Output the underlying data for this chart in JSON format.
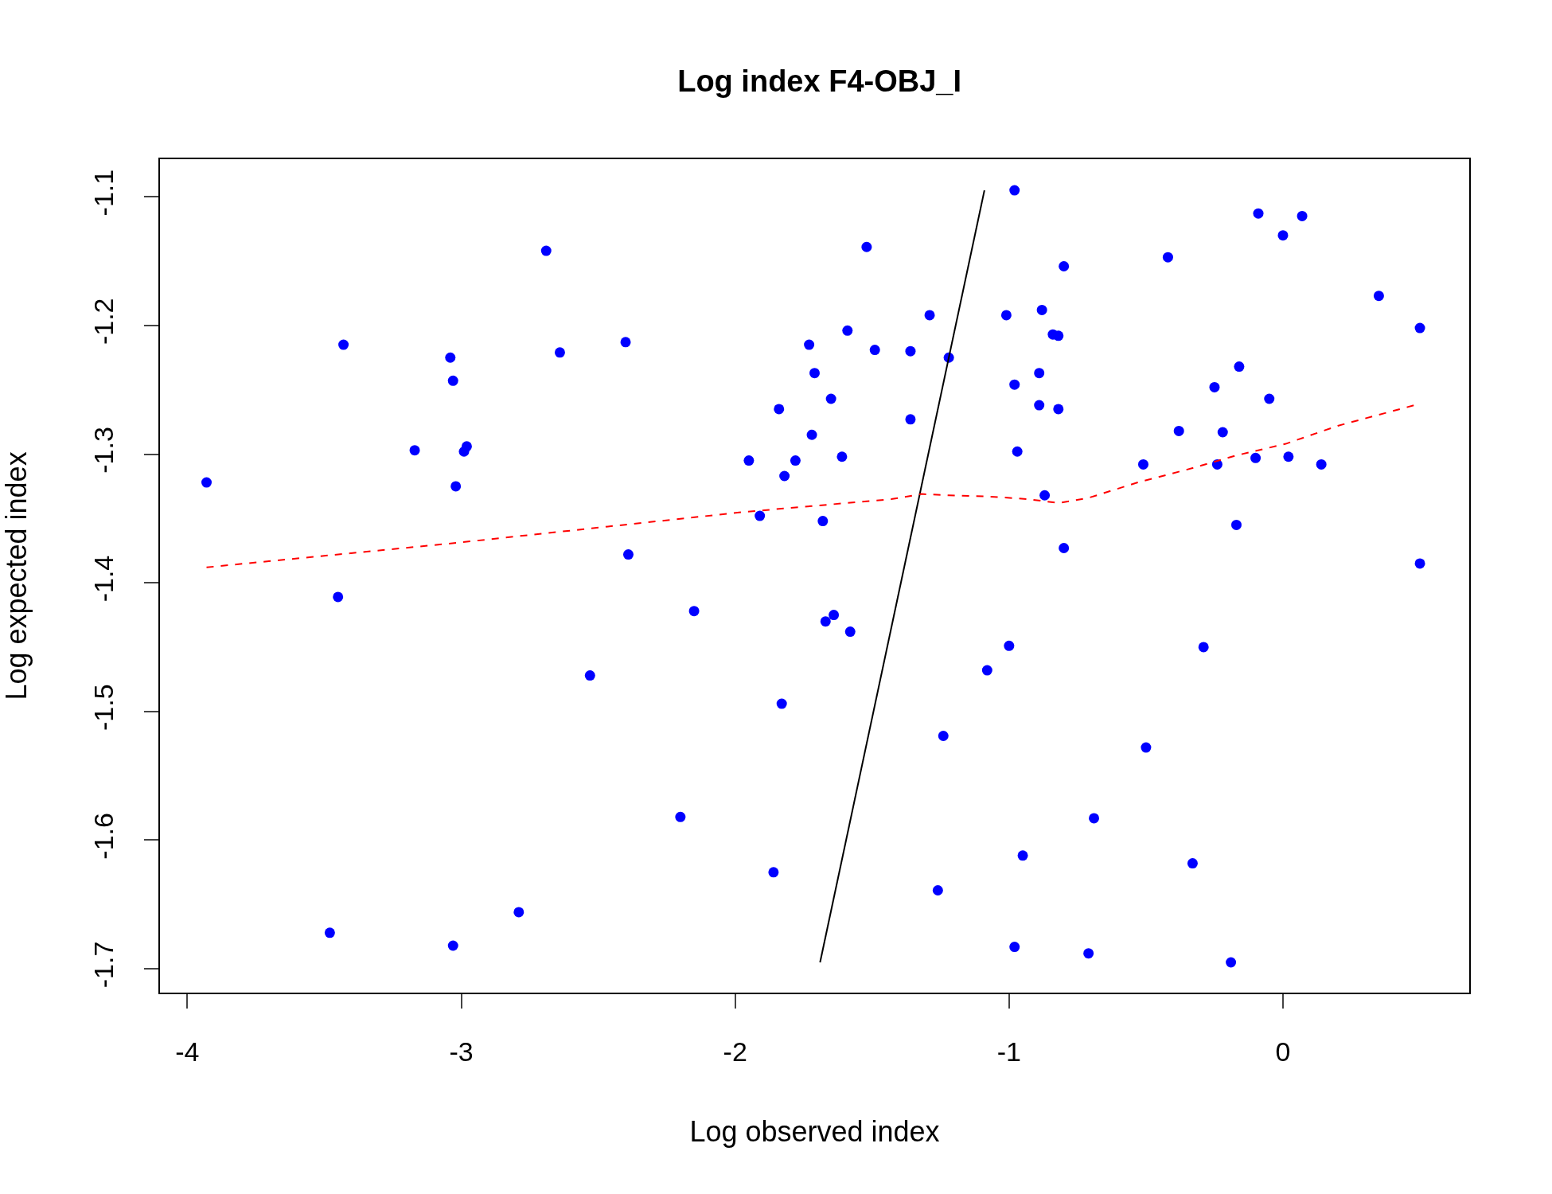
{
  "chart_data": {
    "type": "scatter",
    "title": "Log index F4-OBJ_I",
    "xlabel": "Log observed index",
    "ylabel": "Log expected index",
    "xlim": [
      -4.1,
      0.68
    ],
    "ylim": [
      -1.7185,
      -1.0708
    ],
    "xticks": [
      -4,
      -3,
      -2,
      -1,
      0
    ],
    "yticks": [
      -1.7,
      -1.6,
      -1.5,
      -1.4,
      -1.3,
      -1.2,
      -1.1
    ],
    "grid": false,
    "series": [
      {
        "color": "#0000ff",
        "marker": "circle",
        "x": [
          -3.93,
          -3.43,
          -3.45,
          -3.48,
          -3.17,
          -3.04,
          -3.03,
          -3.02,
          -2.99,
          -2.98,
          -3.03,
          -2.79,
          -2.69,
          -2.64,
          -2.53,
          -2.4,
          -2.39,
          -2.2,
          -2.15,
          -1.95,
          -1.91,
          -1.86,
          -1.84,
          -1.83,
          -1.82,
          -1.78,
          -1.73,
          -1.72,
          -1.71,
          -1.68,
          -1.67,
          -1.65,
          -1.64,
          -1.61,
          -1.59,
          -1.58,
          -1.52,
          -1.49,
          -1.36,
          -1.36,
          -1.29,
          -1.26,
          -1.24,
          -1.22,
          -1.08,
          -1.01,
          -1.0,
          -0.98,
          -0.98,
          -0.98,
          -0.97,
          -0.95,
          -0.89,
          -0.89,
          -0.88,
          -0.87,
          -0.84,
          -0.82,
          -0.82,
          -0.8,
          -0.8,
          -0.71,
          -0.69,
          -0.51,
          -0.5,
          -0.42,
          -0.38,
          -0.33,
          -0.29,
          -0.25,
          -0.24,
          -0.22,
          -0.19,
          -0.17,
          -0.16,
          -0.1,
          -0.09,
          -0.05,
          0.0,
          0.02,
          0.07,
          0.14,
          0.35,
          0.5,
          0.5
        ],
        "values": [
          -1.322,
          -1.215,
          -1.411,
          -1.672,
          -1.297,
          -1.225,
          -1.243,
          -1.325,
          -1.298,
          -1.294,
          -1.682,
          -1.656,
          -1.142,
          -1.221,
          -1.472,
          -1.213,
          -1.378,
          -1.582,
          -1.422,
          -1.305,
          -1.348,
          -1.625,
          -1.265,
          -1.494,
          -1.317,
          -1.305,
          -1.215,
          -1.285,
          -1.237,
          -1.352,
          -1.43,
          -1.257,
          -1.425,
          -1.302,
          -1.204,
          -1.438,
          -1.139,
          -1.219,
          -1.22,
          -1.273,
          -1.192,
          -1.639,
          -1.519,
          -1.225,
          -1.468,
          -1.192,
          -1.449,
          -1.246,
          -1.095,
          -1.683,
          -1.298,
          -1.612,
          -1.237,
          -1.262,
          -1.188,
          -1.332,
          -1.207,
          -1.208,
          -1.265,
          -1.154,
          -1.373,
          -1.688,
          -1.583,
          -1.308,
          -1.528,
          -1.147,
          -1.282,
          -1.618,
          -1.45,
          -1.248,
          -1.308,
          -1.283,
          -1.695,
          -1.355,
          -1.232,
          -1.303,
          -1.113,
          -1.257,
          -1.13,
          -1.302,
          -1.115,
          -1.308,
          -1.177,
          -1.385,
          -1.202
        ]
      },
      {
        "type": "line",
        "color": "#000000",
        "line_style": "solid",
        "x": [
          -1.69,
          -1.09
        ],
        "values": [
          -1.695,
          -1.095
        ]
      },
      {
        "type": "line",
        "color": "#ff0000",
        "line_style": "dashed",
        "x": [
          -3.93,
          -3.02,
          -1.97,
          -1.43,
          -1.32,
          -1.22,
          -1.07,
          -0.93,
          -0.82,
          -0.71,
          -0.53,
          -0.35,
          -0.17,
          0.01,
          0.2,
          0.48
        ],
        "values": [
          -1.388,
          -1.369,
          -1.345,
          -1.335,
          -1.331,
          -1.332,
          -1.333,
          -1.335,
          -1.338,
          -1.334,
          -1.322,
          -1.312,
          -1.301,
          -1.292,
          -1.278,
          -1.262
        ]
      }
    ]
  }
}
